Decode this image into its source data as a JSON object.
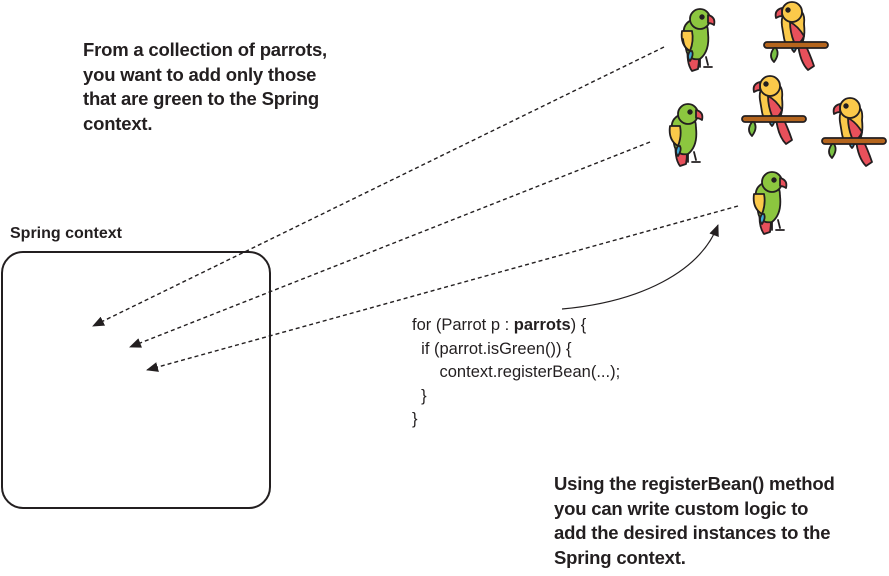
{
  "callouts": {
    "top": [
      "From a collection of parrots,",
      "you want to add only those",
      "that are green to the Spring",
      "context."
    ],
    "bottom": [
      "Using the registerBean() method",
      "you can write custom logic to",
      "add the desired instances to the",
      "Spring context."
    ]
  },
  "context_label": "Spring context",
  "code": {
    "line1_prefix": "for (Parrot p : ",
    "line1_bold": "parrots",
    "line1_suffix": ") {",
    "line2": "  if (parrot.isGreen()) {",
    "line3": "      context.registerBean(...);",
    "line4": "  }",
    "line5": "}"
  },
  "parrots": [
    {
      "kind": "green-parrot-icon",
      "color": "green",
      "perch": false
    },
    {
      "kind": "yellow-parrot-icon",
      "color": "yellow",
      "perch": true
    },
    {
      "kind": "green-parrot-icon",
      "color": "green",
      "perch": false
    },
    {
      "kind": "yellow-parrot-icon",
      "color": "yellow",
      "perch": true
    },
    {
      "kind": "yellow-parrot-icon",
      "color": "yellow",
      "perch": true
    },
    {
      "kind": "green-parrot-icon",
      "color": "green",
      "perch": false
    }
  ],
  "colors": {
    "text": "#231f20",
    "green_body": "#8cc63f",
    "yellow_body": "#fbc94a",
    "red_wing": "#e8505b",
    "blue_accent": "#3fa9d6",
    "perch_brown": "#b5651d",
    "leaf_green": "#7ac143"
  }
}
